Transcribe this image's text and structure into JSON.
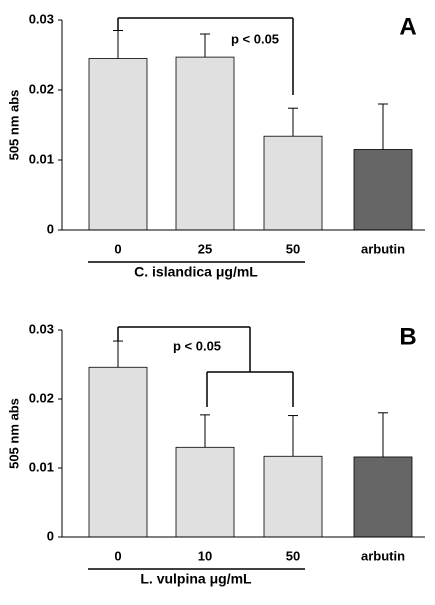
{
  "chart_data": [
    {
      "type": "bar",
      "panel": "A",
      "ylabel": "505 nm abs",
      "annotation": "p < 0.05",
      "group_label": "C. islandica μg/mL",
      "categories": [
        "0",
        "25",
        "50",
        "arbutin"
      ],
      "values": [
        0.0245,
        0.0247,
        0.0134,
        0.0115
      ],
      "errors": [
        0.004,
        0.0033,
        0.004,
        0.0065
      ],
      "colors": [
        "#e0e0e0",
        "#e0e0e0",
        "#e0e0e0",
        "#666666"
      ],
      "ylim": [
        0,
        0.03
      ],
      "yticks": [
        0,
        0.01,
        0.02,
        0.03
      ]
    },
    {
      "type": "bar",
      "panel": "B",
      "ylabel": "505 nm abs",
      "annotation": "p < 0.05",
      "group_label": "L. vulpina μg/mL",
      "categories": [
        "0",
        "10",
        "50",
        "arbutin"
      ],
      "values": [
        0.0246,
        0.013,
        0.0117,
        0.0116
      ],
      "errors": [
        0.0038,
        0.0047,
        0.0059,
        0.0064
      ],
      "colors": [
        "#e0e0e0",
        "#e0e0e0",
        "#e0e0e0",
        "#666666"
      ],
      "ylim": [
        0,
        0.03
      ],
      "yticks": [
        0,
        0.01,
        0.02,
        0.03
      ]
    }
  ]
}
